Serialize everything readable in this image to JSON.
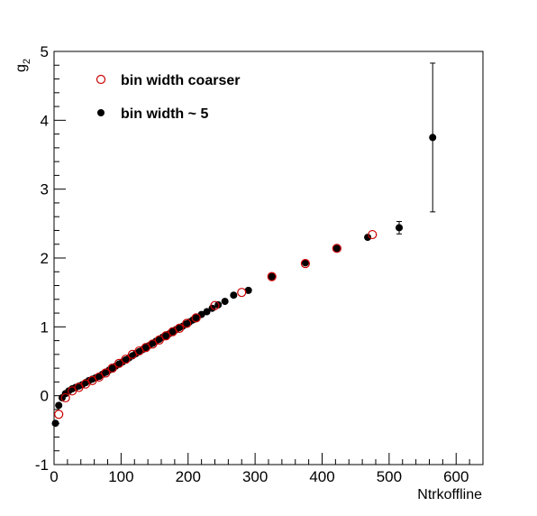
{
  "chart_data": {
    "type": "scatter",
    "title": "",
    "xlabel": "Ntrkoffline",
    "ylabel": "g",
    "ylabel_subscript": "2",
    "xlim": [
      0,
      640
    ],
    "ylim": [
      -1,
      5
    ],
    "x_ticks": [
      0,
      100,
      200,
      300,
      400,
      500,
      600
    ],
    "y_ticks": [
      -1,
      0,
      1,
      2,
      3,
      4,
      5
    ],
    "grid": false,
    "legend_position": "top-left",
    "series": [
      {
        "name": "bin width coarser",
        "marker": "open-circle",
        "color": "#cc0000",
        "x": [
          7,
          17,
          27,
          37,
          47,
          57,
          67,
          77,
          87,
          97,
          107,
          117,
          127,
          137,
          147,
          157,
          167,
          177,
          187,
          198,
          212,
          240,
          280,
          325,
          375,
          422,
          475
        ],
        "y": [
          -0.27,
          -0.03,
          0.07,
          0.12,
          0.17,
          0.22,
          0.27,
          0.33,
          0.4,
          0.47,
          0.53,
          0.6,
          0.65,
          0.7,
          0.75,
          0.81,
          0.87,
          0.93,
          0.98,
          1.05,
          1.13,
          1.31,
          1.5,
          1.73,
          1.92,
          2.14,
          2.34
        ]
      },
      {
        "name": "bin width ~ 5",
        "marker": "filled-circle",
        "color": "#000000",
        "x": [
          2,
          7,
          12,
          17,
          22,
          27,
          32,
          37,
          42,
          47,
          52,
          57,
          62,
          67,
          72,
          77,
          82,
          87,
          92,
          97,
          102,
          107,
          112,
          117,
          122,
          127,
          132,
          137,
          142,
          147,
          152,
          157,
          162,
          167,
          172,
          177,
          182,
          187,
          192,
          197,
          202,
          207,
          212,
          220,
          228,
          236,
          245,
          255,
          268,
          290,
          325,
          375,
          422,
          468,
          515,
          565
        ],
        "y": [
          -0.4,
          -0.14,
          -0.03,
          0.03,
          0.07,
          0.1,
          0.12,
          0.14,
          0.16,
          0.19,
          0.22,
          0.24,
          0.26,
          0.28,
          0.31,
          0.34,
          0.37,
          0.4,
          0.43,
          0.46,
          0.49,
          0.52,
          0.55,
          0.58,
          0.61,
          0.64,
          0.67,
          0.7,
          0.73,
          0.76,
          0.79,
          0.82,
          0.85,
          0.87,
          0.9,
          0.93,
          0.96,
          0.99,
          1.01,
          1.04,
          1.07,
          1.1,
          1.13,
          1.18,
          1.22,
          1.27,
          1.32,
          1.37,
          1.46,
          1.53,
          1.73,
          1.93,
          2.14,
          2.3,
          2.44,
          3.75
        ],
        "yerr": [
          0.0,
          0.0,
          0.0,
          0.0,
          0.0,
          0.0,
          0.0,
          0.0,
          0.0,
          0.0,
          0.0,
          0.0,
          0.0,
          0.0,
          0.0,
          0.0,
          0.0,
          0.0,
          0.0,
          0.0,
          0.0,
          0.0,
          0.0,
          0.0,
          0.0,
          0.0,
          0.0,
          0.0,
          0.0,
          0.0,
          0.0,
          0.0,
          0.0,
          0.0,
          0.0,
          0.0,
          0.0,
          0.0,
          0.0,
          0.0,
          0.0,
          0.0,
          0.0,
          0.0,
          0.0,
          0.0,
          0.0,
          0.0,
          0.0,
          0.0,
          0.0,
          0.0,
          0.0,
          0.0,
          0.09,
          1.08
        ]
      }
    ]
  }
}
